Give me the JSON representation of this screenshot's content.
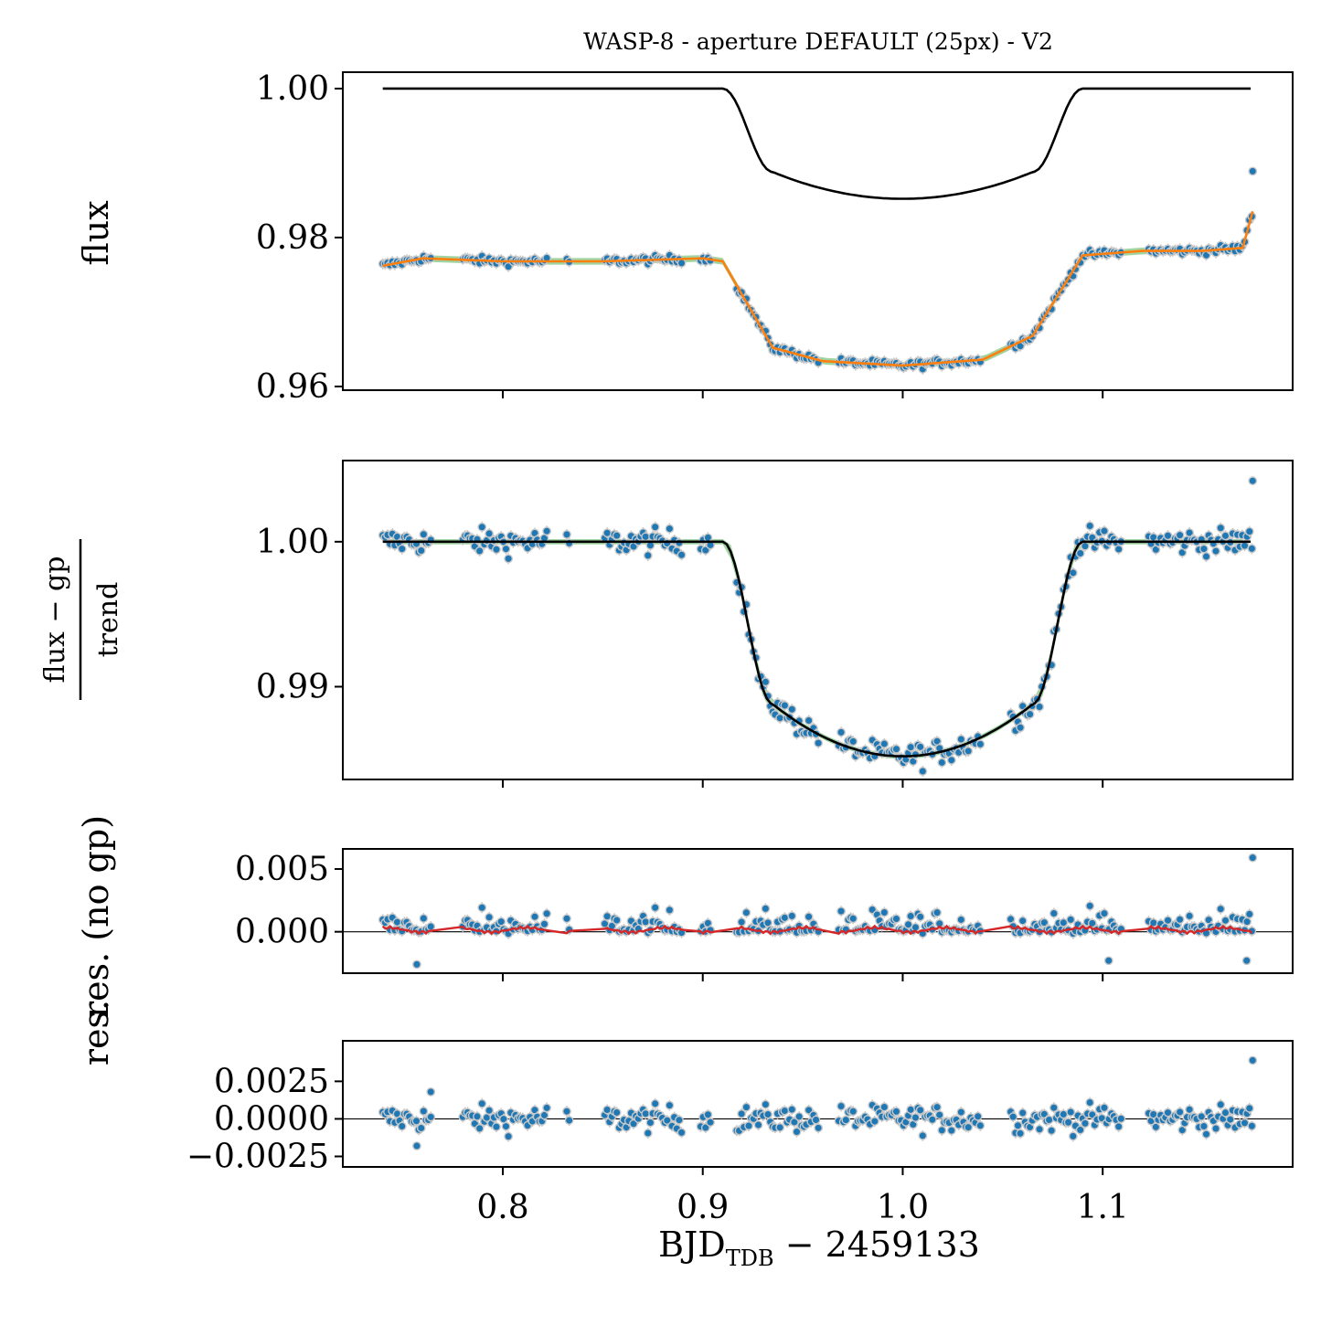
{
  "title": "WASP-8 - aperture DEFAULT (25px) - V2",
  "colors": {
    "data_points": "#1f77b4",
    "data_edge": "#c8c8c8",
    "gp_samples": "#2ca02c",
    "gp_model": "#ff7f0e",
    "transit_model": "#000000",
    "gp_residual_model": "#d62728",
    "zero_line": "#000000"
  },
  "x_axis": {
    "label_main": "BJD",
    "label_subscript": "TDB",
    "label_suffix": " − 2459133",
    "ticks": [
      0.8,
      0.9,
      1.0,
      1.1
    ],
    "tick_labels": [
      "0.8",
      "0.9",
      "1.0",
      "1.1"
    ],
    "xlim": [
      0.72,
      1.195
    ]
  },
  "chart_data": [
    {
      "type": "scatter",
      "panel": "flux",
      "ylabel": "flux",
      "xlim": [
        0.72,
        1.195
      ],
      "ylim": [
        0.9595,
        1.0022
      ],
      "yticks": [
        0.96,
        0.98,
        1.0
      ],
      "ytick_labels": [
        "0.96",
        "0.98",
        "1.00"
      ],
      "grid": false,
      "series": [
        {
          "role": "data",
          "description_shown": "observed flux points",
          "x_range": [
            0.74,
            1.175
          ],
          "baseline": 0.977,
          "transit_floor": 0.9628
        },
        {
          "role": "transit_model",
          "x": [
            0.74,
            0.91,
            0.935,
            1.0,
            1.065,
            1.09,
            1.175
          ],
          "y": [
            1.0,
            1.0,
            0.9888,
            0.9852,
            0.9888,
            1.0,
            1.0
          ]
        },
        {
          "role": "gp_model",
          "x": [
            0.74,
            0.76,
            0.8,
            0.85,
            0.9,
            0.91,
            0.935,
            0.96,
            1.0,
            1.04,
            1.065,
            1.09,
            1.12,
            1.15,
            1.17,
            1.175
          ],
          "y": [
            0.9762,
            0.9772,
            0.9768,
            0.9768,
            0.9772,
            0.9768,
            0.9652,
            0.9634,
            0.9628,
            0.9636,
            0.9668,
            0.9776,
            0.9782,
            0.9782,
            0.9786,
            0.9835
          ]
        }
      ],
      "outliers": [
        {
          "x": 1.175,
          "y": 0.9889
        }
      ]
    },
    {
      "type": "scatter",
      "panel": "detrended",
      "ylabel_numerator": "flux − gp",
      "ylabel_denominator": "trend",
      "xlim": [
        0.72,
        1.195
      ],
      "ylim": [
        0.9836,
        1.0056
      ],
      "yticks": [
        0.99,
        1.0
      ],
      "ytick_labels": [
        "0.99",
        "1.00"
      ],
      "grid": false,
      "series": [
        {
          "role": "transit_model",
          "x": [
            0.74,
            0.91,
            0.935,
            1.0,
            1.065,
            1.09,
            1.175
          ],
          "y": [
            1.0,
            1.0,
            0.9888,
            0.9852,
            0.9888,
            1.0,
            1.0
          ]
        }
      ],
      "outliers": [
        {
          "x": 1.175,
          "y": 1.0042
        }
      ]
    },
    {
      "type": "scatter",
      "panel": "residuals",
      "ylabel": "res.",
      "xlim": [
        0.72,
        1.195
      ],
      "ylim": [
        -0.0033,
        0.0066
      ],
      "yticks": [
        0.0,
        0.005
      ],
      "ytick_labels": [
        "0.000",
        "0.005"
      ],
      "grid": false,
      "zero_line": true,
      "outliers": [
        {
          "x": 1.175,
          "y": 0.0059
        },
        {
          "x": 0.757,
          "y": -0.0026
        },
        {
          "x": 1.103,
          "y": -0.0023
        },
        {
          "x": 1.172,
          "y": -0.0023
        }
      ]
    },
    {
      "type": "scatter",
      "panel": "residuals_no_gp",
      "ylabel": "res. (no gp)",
      "xlim": [
        0.72,
        1.195
      ],
      "ylim": [
        -0.0032,
        0.0052
      ],
      "yticks": [
        -0.0025,
        0.0,
        0.0025
      ],
      "ytick_labels": [
        "−0.0025",
        "0.0000",
        "0.0025"
      ],
      "grid": false,
      "zero_line": true,
      "outliers": [
        {
          "x": 1.175,
          "y": 0.0039
        },
        {
          "x": 0.757,
          "y": -0.0018
        },
        {
          "x": 0.764,
          "y": 0.0018
        }
      ]
    }
  ]
}
